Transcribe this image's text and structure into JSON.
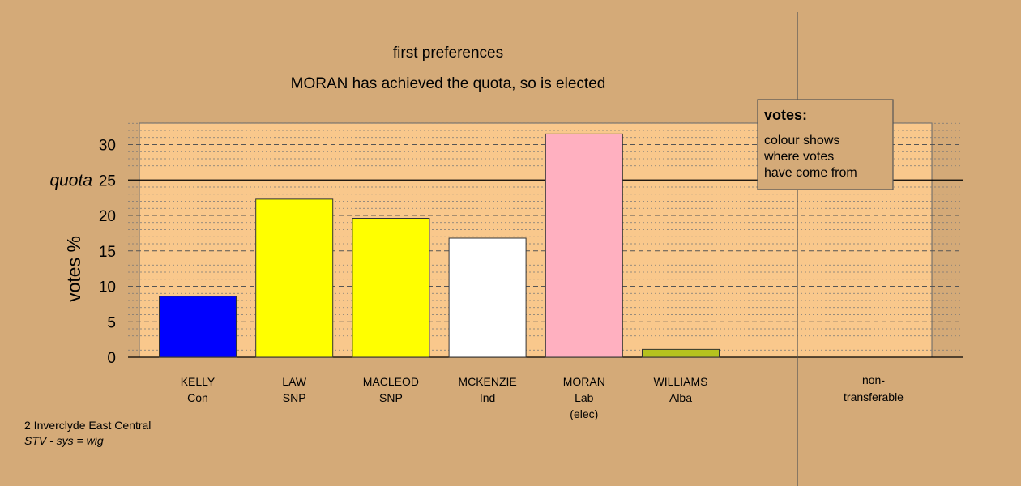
{
  "chart_data": {
    "type": "bar",
    "title": "first preferences",
    "subtitle": "MORAN has achieved the quota, so is elected",
    "ylabel": "votes %",
    "ylim": [
      0,
      33
    ],
    "yticks": [
      0,
      5,
      10,
      15,
      20,
      25,
      30
    ],
    "quota": 25,
    "quota_label": "quota",
    "categories": [
      {
        "name": "KELLY",
        "party": "Con",
        "note": ""
      },
      {
        "name": "LAW",
        "party": "SNP",
        "note": ""
      },
      {
        "name": "MACLEOD",
        "party": "SNP",
        "note": ""
      },
      {
        "name": "MCKENZIE",
        "party": "Ind",
        "note": ""
      },
      {
        "name": "MORAN",
        "party": "Lab",
        "note": "(elec)"
      },
      {
        "name": "WILLIAMS",
        "party": "Alba",
        "note": ""
      }
    ],
    "values": [
      8.6,
      22.3,
      19.6,
      16.8,
      31.5,
      1.1
    ],
    "colors": [
      "#0000ff",
      "#ffff00",
      "#ffff00",
      "#ffffff",
      "#ffb0c0",
      "#b5c21e"
    ],
    "nontransferable": {
      "label_line1": "non-",
      "label_line2": "transferable",
      "value": 0
    },
    "legend": {
      "title": "votes:",
      "lines": [
        "colour shows",
        "where votes",
        "have come from"
      ],
      "position": "top-right"
    },
    "grid": true
  },
  "footer": {
    "ward": "2 Inverclyde East Central",
    "system": "STV - sys = wig"
  },
  "colors": {
    "background": "#d4aa78",
    "plot_background": "#f9c88c"
  }
}
